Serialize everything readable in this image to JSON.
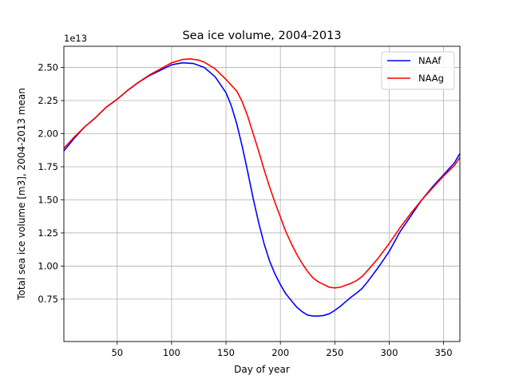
{
  "chart_data": {
    "type": "line",
    "title": "Sea ice volume, 2004-2013",
    "xlabel": "Day of year",
    "ylabel": "Total sea ice volume [m3], 2004-2013 mean",
    "y_offset_label": "1e13",
    "xlim": [
      1,
      365
    ],
    "ylim": [
      0.43,
      2.66
    ],
    "xticks": [
      50,
      100,
      150,
      200,
      250,
      300,
      350
    ],
    "yticks": [
      0.75,
      1.0,
      1.25,
      1.5,
      1.75,
      2.0,
      2.25,
      2.5
    ],
    "ytick_labels": [
      "0.75",
      "1.00",
      "1.25",
      "1.50",
      "1.75",
      "2.00",
      "2.25",
      "2.50"
    ],
    "grid": true,
    "legend_position": "top-right",
    "series": [
      {
        "name": "NAAf",
        "color": "#0000ff",
        "points": [
          [
            1,
            1.87
          ],
          [
            10,
            1.96
          ],
          [
            20,
            2.05
          ],
          [
            30,
            2.12
          ],
          [
            40,
            2.2
          ],
          [
            50,
            2.26
          ],
          [
            60,
            2.33
          ],
          [
            70,
            2.39
          ],
          [
            80,
            2.44
          ],
          [
            90,
            2.48
          ],
          [
            100,
            2.52
          ],
          [
            110,
            2.535
          ],
          [
            120,
            2.53
          ],
          [
            130,
            2.5
          ],
          [
            140,
            2.43
          ],
          [
            150,
            2.31
          ],
          [
            155,
            2.21
          ],
          [
            160,
            2.07
          ],
          [
            165,
            1.9
          ],
          [
            170,
            1.71
          ],
          [
            175,
            1.51
          ],
          [
            180,
            1.33
          ],
          [
            185,
            1.17
          ],
          [
            190,
            1.04
          ],
          [
            195,
            0.94
          ],
          [
            200,
            0.86
          ],
          [
            205,
            0.79
          ],
          [
            210,
            0.74
          ],
          [
            215,
            0.69
          ],
          [
            220,
            0.655
          ],
          [
            225,
            0.63
          ],
          [
            230,
            0.622
          ],
          [
            235,
            0.622
          ],
          [
            240,
            0.627
          ],
          [
            245,
            0.64
          ],
          [
            250,
            0.665
          ],
          [
            255,
            0.695
          ],
          [
            260,
            0.73
          ],
          [
            265,
            0.765
          ],
          [
            270,
            0.795
          ],
          [
            275,
            0.83
          ],
          [
            280,
            0.88
          ],
          [
            290,
            0.99
          ],
          [
            300,
            1.11
          ],
          [
            310,
            1.26
          ],
          [
            320,
            1.38
          ],
          [
            330,
            1.5
          ],
          [
            340,
            1.6
          ],
          [
            350,
            1.69
          ],
          [
            360,
            1.78
          ],
          [
            365,
            1.85
          ]
        ]
      },
      {
        "name": "NAAg",
        "color": "#ff0000",
        "points": [
          [
            1,
            1.89
          ],
          [
            10,
            1.97
          ],
          [
            20,
            2.05
          ],
          [
            30,
            2.12
          ],
          [
            40,
            2.2
          ],
          [
            50,
            2.26
          ],
          [
            60,
            2.33
          ],
          [
            70,
            2.39
          ],
          [
            80,
            2.445
          ],
          [
            90,
            2.49
          ],
          [
            100,
            2.535
          ],
          [
            110,
            2.56
          ],
          [
            117,
            2.565
          ],
          [
            125,
            2.555
          ],
          [
            130,
            2.54
          ],
          [
            140,
            2.49
          ],
          [
            150,
            2.41
          ],
          [
            160,
            2.32
          ],
          [
            165,
            2.24
          ],
          [
            170,
            2.13
          ],
          [
            175,
            2.0
          ],
          [
            180,
            1.87
          ],
          [
            185,
            1.73
          ],
          [
            190,
            1.6
          ],
          [
            195,
            1.48
          ],
          [
            200,
            1.37
          ],
          [
            205,
            1.26
          ],
          [
            210,
            1.17
          ],
          [
            215,
            1.09
          ],
          [
            220,
            1.02
          ],
          [
            225,
            0.96
          ],
          [
            230,
            0.91
          ],
          [
            235,
            0.88
          ],
          [
            240,
            0.86
          ],
          [
            245,
            0.84
          ],
          [
            250,
            0.835
          ],
          [
            255,
            0.84
          ],
          [
            260,
            0.855
          ],
          [
            265,
            0.87
          ],
          [
            270,
            0.89
          ],
          [
            275,
            0.92
          ],
          [
            280,
            0.965
          ],
          [
            290,
            1.06
          ],
          [
            300,
            1.17
          ],
          [
            310,
            1.29
          ],
          [
            320,
            1.4
          ],
          [
            330,
            1.5
          ],
          [
            340,
            1.59
          ],
          [
            350,
            1.68
          ],
          [
            360,
            1.76
          ],
          [
            365,
            1.82
          ]
        ]
      }
    ]
  }
}
